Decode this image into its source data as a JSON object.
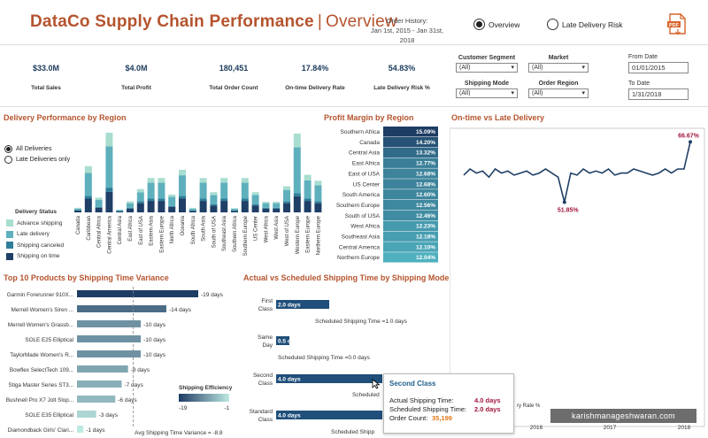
{
  "header": {
    "title": "DataCo Supply Chain Performance",
    "separator": "|",
    "subtitle": "Overview",
    "history_label": "Order History:",
    "history_range": "Jan 1st, 2015 - Jan 31st, 2018",
    "nav_overview": "Overview",
    "nav_late": "Late Delivery Risk",
    "export_icon": "pdf-export-icon"
  },
  "kpis": [
    {
      "value": "$33.0M",
      "label": "Total Sales"
    },
    {
      "value": "$4.0M",
      "label": "Total Profit"
    },
    {
      "value": "180,451",
      "label": "Total Order Count"
    },
    {
      "value": "17.84%",
      "label": "On-time Delivery Rate"
    },
    {
      "value": "54.83%",
      "label": "Late Delivery Risk %"
    }
  ],
  "filters": {
    "customer_segment": {
      "label": "Customer Segment",
      "value": "(All)"
    },
    "market": {
      "label": "Market",
      "value": "(All)"
    },
    "shipping_mode": {
      "label": "Shipping Mode",
      "value": "(All)"
    },
    "order_region": {
      "label": "Order Region",
      "value": "(All)"
    },
    "from_date": {
      "label": "From Date",
      "value": "01/01/2015"
    },
    "to_date": {
      "label": "To Date",
      "value": "1/31/2018"
    }
  },
  "delivery": {
    "title": "Delivery Performance by Region",
    "radio_all": "All Deliveries",
    "radio_late": "Late Deliveries only",
    "legend_title": "Delivery Status",
    "legend": [
      {
        "name": "Advance shipping",
        "color": "#a8ddd0"
      },
      {
        "name": "Late delivery",
        "color": "#5fb0bd"
      },
      {
        "name": "Shipping canceled",
        "color": "#2e7d9a"
      },
      {
        "name": "Shipping on time",
        "color": "#1f3f66"
      }
    ]
  },
  "chart_data": [
    {
      "type": "bar",
      "id": "delivery",
      "categories": [
        "Canada",
        "Caribbean",
        "Central Africa",
        "Central America",
        "Central Asia",
        "East Africa",
        "East of USA",
        "Eastern Asia",
        "Eastern Europe",
        "North Africa",
        "Oceania",
        "South Africa",
        "South Asia",
        "South of USA",
        "Southeast Asia",
        "Southern Africa",
        "Southern Europe",
        "US Center",
        "West Africa",
        "West Asia",
        "West of USA",
        "Western Europe",
        "Eastern Europe",
        "Northern Europe"
      ],
      "series": [
        {
          "name": "Shipping on time",
          "values": [
            0.4,
            3,
            1,
            4.5,
            0.2,
            0.8,
            2,
            2.5,
            2.5,
            1.2,
            3,
            0.3,
            2.5,
            1.5,
            2.5,
            0.3,
            2.5,
            1.5,
            0.8,
            0.8,
            2,
            3.5,
            2.5,
            2
          ]
        },
        {
          "name": "Shipping canceled",
          "values": [
            0.1,
            0.6,
            0.2,
            0.9,
            0.1,
            0.2,
            0.4,
            0.5,
            0.5,
            0.2,
            0.6,
            0.1,
            0.5,
            0.3,
            0.5,
            0.1,
            0.5,
            0.3,
            0.2,
            0.2,
            0.4,
            0.7,
            0.5,
            0.4
          ]
        },
        {
          "name": "Late delivery",
          "values": [
            0.3,
            5,
            1.5,
            9,
            0.2,
            1,
            2,
            3.5,
            3.5,
            2,
            4.5,
            0.4,
            3.5,
            2,
            3.5,
            0.4,
            3.5,
            2,
            1,
            1,
            2.5,
            10,
            4,
            3.5
          ]
        },
        {
          "name": "Advance shipping",
          "values": [
            0.2,
            1.5,
            0.5,
            3,
            0.1,
            0.4,
            0.7,
            1,
            1,
            0.5,
            1.2,
            0.2,
            1,
            0.6,
            1,
            0.1,
            1,
            0.6,
            0.3,
            0.3,
            0.8,
            3,
            1.2,
            1
          ]
        }
      ]
    },
    {
      "type": "heatmap",
      "id": "profit_margin",
      "title": "Profit Margin by Region",
      "categories": [
        "Southern Africa",
        "Canada",
        "Central Asia",
        "East Africa",
        "East of USA",
        "US Center",
        "South America",
        "Southern Europe",
        "South of USA",
        "West Africa",
        "Southeast Asia",
        "Central America",
        "Northern Europe"
      ],
      "values": [
        15.09,
        14.2,
        13.32,
        12.77,
        12.68,
        12.68,
        12.6,
        12.56,
        12.46,
        12.23,
        12.18,
        12.1,
        12.04
      ],
      "labels": [
        "15.09%",
        "14.20%",
        "13.32%",
        "12.77%",
        "12.68%",
        "12.68%",
        "12.60%",
        "12.56%",
        "12.46%",
        "12.23%",
        "12.18%",
        "12.10%",
        "12.04%"
      ]
    },
    {
      "type": "line",
      "id": "ontime_vs_late",
      "title": "On-time vs Late Delivery",
      "values": [
        58.5,
        60,
        59,
        59.5,
        58,
        60,
        59,
        59.5,
        58.5,
        59,
        59.5,
        58.5,
        59,
        60,
        59,
        58,
        51.85,
        59,
        58.5,
        60,
        59,
        59.5,
        59,
        60,
        58.5,
        59,
        59,
        60,
        59.5,
        59,
        58.5,
        59,
        60,
        59,
        60,
        60,
        66.67
      ],
      "annotations": [
        "51.85%",
        "66.67%"
      ],
      "x_ticks": [
        "2016",
        "2017",
        "2018"
      ],
      "axis_fragment": "ry Rate %"
    },
    {
      "type": "bar",
      "id": "top10",
      "title": "Top 10 Products by Shipping Time Variance",
      "categories": [
        "Garmin Forerunner 910X...",
        "Merrell Women's Siren ...",
        "Merrell Women's Grassb...",
        "SOLE E25 Elliptical",
        "TaylorMade Women's R...",
        "Bowflex SelectTech 109...",
        "Stiga Master Series ST3...",
        "Bushnell Pro X7 Jolt Slop...",
        "SOLE E35 Elliptical",
        "Diamondback Girls' Clari..."
      ],
      "values": [
        -19,
        -14,
        -10,
        -10,
        -10,
        -8,
        -7,
        -6,
        -3,
        -1
      ],
      "labels": [
        "-19 days",
        "-14 days",
        "-10 days",
        "-10 days",
        "-10 days",
        "-8 days",
        "-7 days",
        "-6 days",
        "-3 days",
        "-1 days"
      ],
      "reference_label": "Avg Shipping Time Variance = -8.8",
      "legend_title": "Shipping Efficiency",
      "legend_min": "-19",
      "legend_max": "-1"
    },
    {
      "type": "bar",
      "id": "shipping_mode",
      "title": "Actual vs Scheduled Shipping Time by Shipping Mode",
      "categories": [
        "First Class",
        "Same Day",
        "Second Class",
        "Standard Class"
      ],
      "values": [
        2.0,
        0.5,
        4.0,
        4.0
      ],
      "labels": [
        "2.0 days",
        "0.5 da",
        "4.0 days",
        "4.0 days"
      ],
      "scheduled_labels": [
        "Scheduled Shipping Time =1.0 days",
        "Scheduled Shipping Time =0.0 days",
        "Scheduled",
        "Scheduled Shipp"
      ]
    }
  ],
  "tooltip": {
    "title": "Second Class",
    "actual_label": "Actual Shipping Time:",
    "actual_value": "4.0 days",
    "scheduled_label": "Scheduled Shipping Time:",
    "scheduled_value": "2.0 days",
    "count_label": "Order Count:",
    "count_value": "35,199"
  },
  "watermark": "karishmanageshwaran.com"
}
